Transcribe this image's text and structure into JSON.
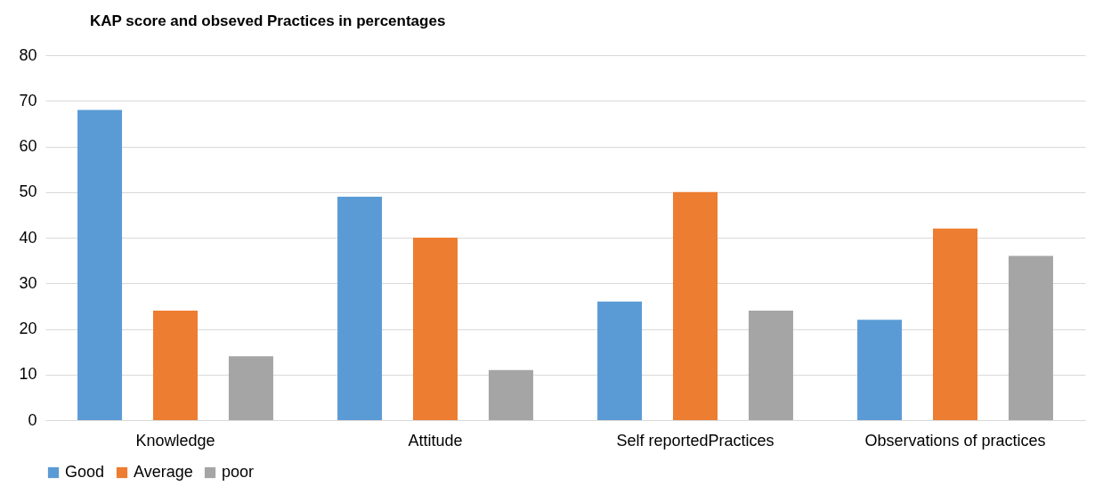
{
  "chart_data": {
    "type": "bar",
    "title": "KAP score and obseved Practices in percentages",
    "categories": [
      "Knowledge",
      "Attitude",
      "Self reportedPractices",
      "Observations  of practices"
    ],
    "series": [
      {
        "name": "Good",
        "color": "#5b9bd5",
        "values": [
          68,
          49,
          26,
          22
        ]
      },
      {
        "name": "Average",
        "color": "#ed7d31",
        "values": [
          24,
          40,
          50,
          42
        ]
      },
      {
        "name": "poor",
        "color": "#a5a5a5",
        "values": [
          14,
          11,
          24,
          36
        ]
      }
    ],
    "ylim": [
      0,
      80
    ],
    "yticks": [
      0,
      10,
      20,
      30,
      40,
      50,
      60,
      70,
      80
    ],
    "grid": "y",
    "legend": "bottom"
  }
}
